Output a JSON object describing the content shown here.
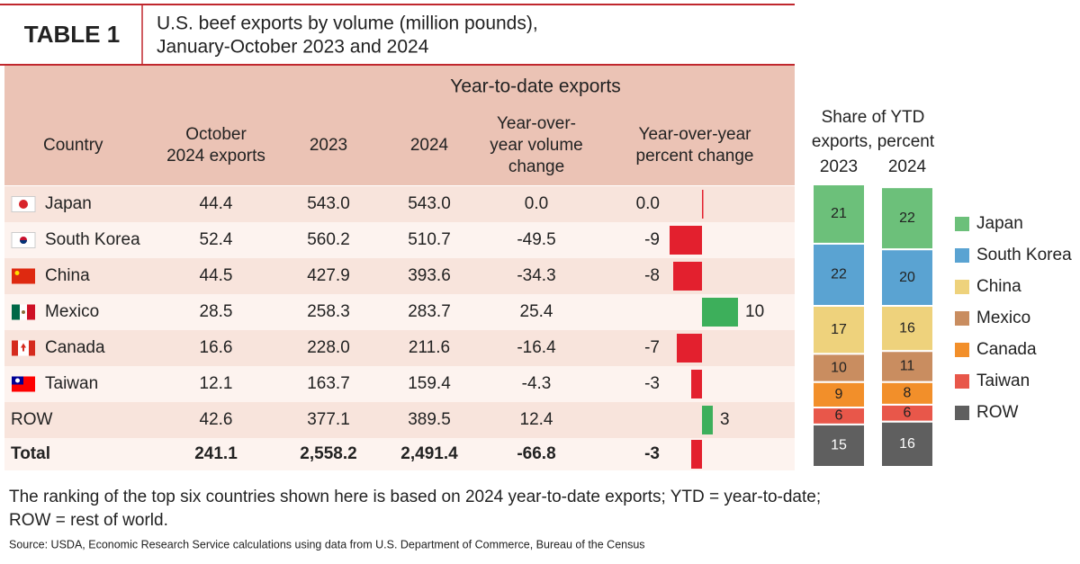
{
  "header": {
    "label": "TABLE 1",
    "title_lines": [
      "U.S. beef exports by volume (million pounds),",
      "January-October 2023 and 2024"
    ]
  },
  "table": {
    "group_header": "Year-to-date exports",
    "columns": [
      [
        "Country"
      ],
      [
        "October",
        "2024 exports"
      ],
      [
        "2023"
      ],
      [
        "2024"
      ],
      [
        "Year-over-",
        "year volume",
        "change"
      ],
      [
        "Year-over-year",
        "percent change"
      ]
    ],
    "rows": [
      [
        "Japan",
        "44.4",
        "543.0",
        "543.0",
        "0.0"
      ],
      [
        "South Korea",
        "52.4",
        "560.2",
        "510.7",
        "-49.5"
      ],
      [
        "China",
        "44.5",
        "427.9",
        "393.6",
        "-34.3"
      ],
      [
        "Mexico",
        "28.5",
        "258.3",
        "283.7",
        "25.4"
      ],
      [
        "Canada",
        "16.6",
        "228.0",
        "211.6",
        "-16.4"
      ],
      [
        "Taiwan",
        "12.1",
        "163.7",
        "159.4",
        "-4.3"
      ],
      [
        "ROW",
        "42.6",
        "377.1",
        "389.5",
        "12.4"
      ],
      [
        "Total",
        "241.1",
        "2,558.2",
        "2,491.4",
        "-66.8"
      ]
    ],
    "percent_change": {
      "color_negative": "#e3202e",
      "color_positive": "#3daf5b",
      "values": [
        0,
        -9,
        -8,
        10,
        -7,
        -3,
        3,
        -3
      ],
      "value_labels": [
        "0.0",
        "-9",
        "-8",
        "10",
        "-7",
        "-3",
        "3",
        "-3"
      ]
    }
  },
  "chart_data": {
    "type": "stacked_bar",
    "title_lines": [
      "Share of YTD",
      "exports, percent"
    ],
    "categories": [
      "2023",
      "2024"
    ],
    "series": [
      {
        "name": "Japan",
        "color": "#6cc07a",
        "values": [
          21,
          22
        ]
      },
      {
        "name": "South Korea",
        "color": "#5aa3d2",
        "values": [
          22,
          20
        ]
      },
      {
        "name": "China",
        "color": "#eed27c",
        "values": [
          17,
          16
        ]
      },
      {
        "name": "Mexico",
        "color": "#c98d60",
        "values": [
          10,
          11
        ]
      },
      {
        "name": "Canada",
        "color": "#f28f2a",
        "values": [
          9,
          8
        ]
      },
      {
        "name": "Taiwan",
        "color": "#e8574a",
        "values": [
          6,
          6
        ]
      },
      {
        "name": "ROW",
        "color": "#5f5f5f",
        "values": [
          15,
          16
        ]
      }
    ]
  },
  "footnote_lines": [
    "The ranking of the top six countries shown here is based on 2024 year-to-date exports; YTD = year-to-date;",
    "ROW = rest of world."
  ],
  "source": "Source: USDA, Economic Research Service calculations using data from U.S. Department of Commerce, Bureau of the Census"
}
